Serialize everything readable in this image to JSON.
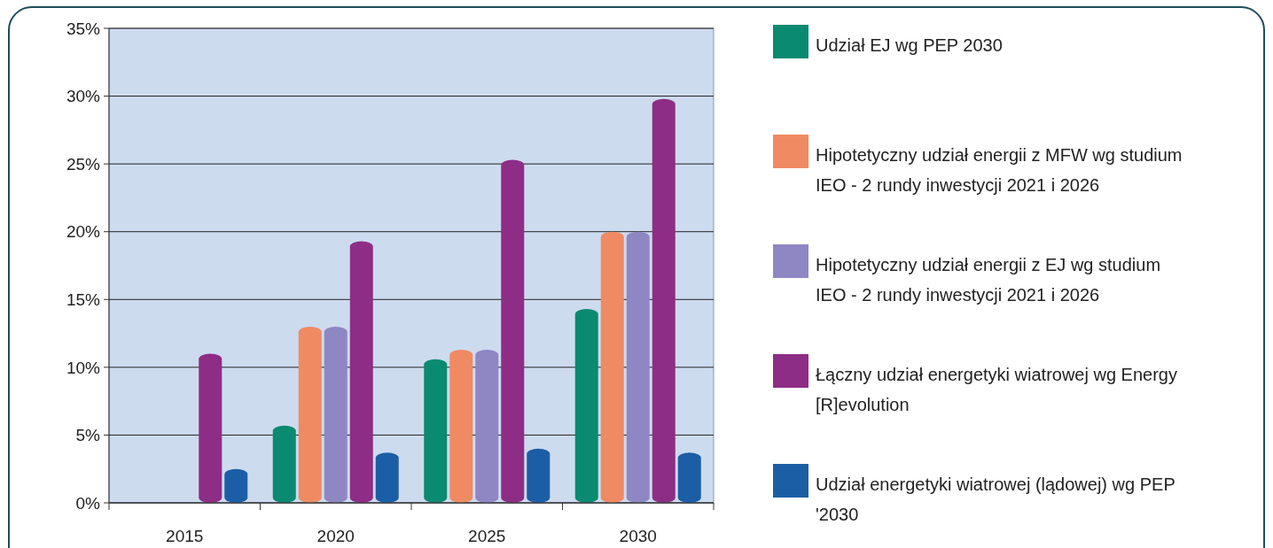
{
  "chart_data": {
    "type": "bar",
    "categories": [
      "2015",
      "2020",
      "2025",
      "2030"
    ],
    "series": [
      {
        "name": "Udział EJ wg PEP 2030",
        "color": "#0a8a70",
        "values": [
          null,
          5.7,
          10.6,
          14.3
        ]
      },
      {
        "name": "Hipotetyczny udział energii z MFW wg studium IEO - 2 rundy inwestycji 2021 i 2026",
        "color": "#f08a62",
        "values": [
          null,
          13,
          11.3,
          20
        ]
      },
      {
        "name": "Hipotetyczny udział energii z EJ wg studium IEO - 2 rundy inwestycji 2021 i 2026",
        "color": "#8f86c4",
        "values": [
          null,
          13,
          11.3,
          20
        ]
      },
      {
        "name": "Łączny udział energetyki wiatrowej wg Energy [R]evolution",
        "color": "#8e2d85",
        "values": [
          11,
          19.3,
          25.3,
          29.8
        ]
      },
      {
        "name": "Udział energetyki wiatrowej (lądowej) wg PEP '2030",
        "color": "#1c5ea6",
        "values": [
          2.5,
          3.7,
          4,
          3.7
        ]
      }
    ],
    "ylim": [
      0,
      35
    ],
    "yticks": [
      {
        "value": 0,
        "label": "0%"
      },
      {
        "value": 5,
        "label": "5%"
      },
      {
        "value": 10,
        "label": "10%"
      },
      {
        "value": 15,
        "label": "15%"
      },
      {
        "value": 20,
        "label": "20%"
      },
      {
        "value": 25,
        "label": "25%"
      },
      {
        "value": 30,
        "label": "30%"
      },
      {
        "value": 35,
        "label": "35%"
      }
    ],
    "grid": "y",
    "legend": "right"
  }
}
